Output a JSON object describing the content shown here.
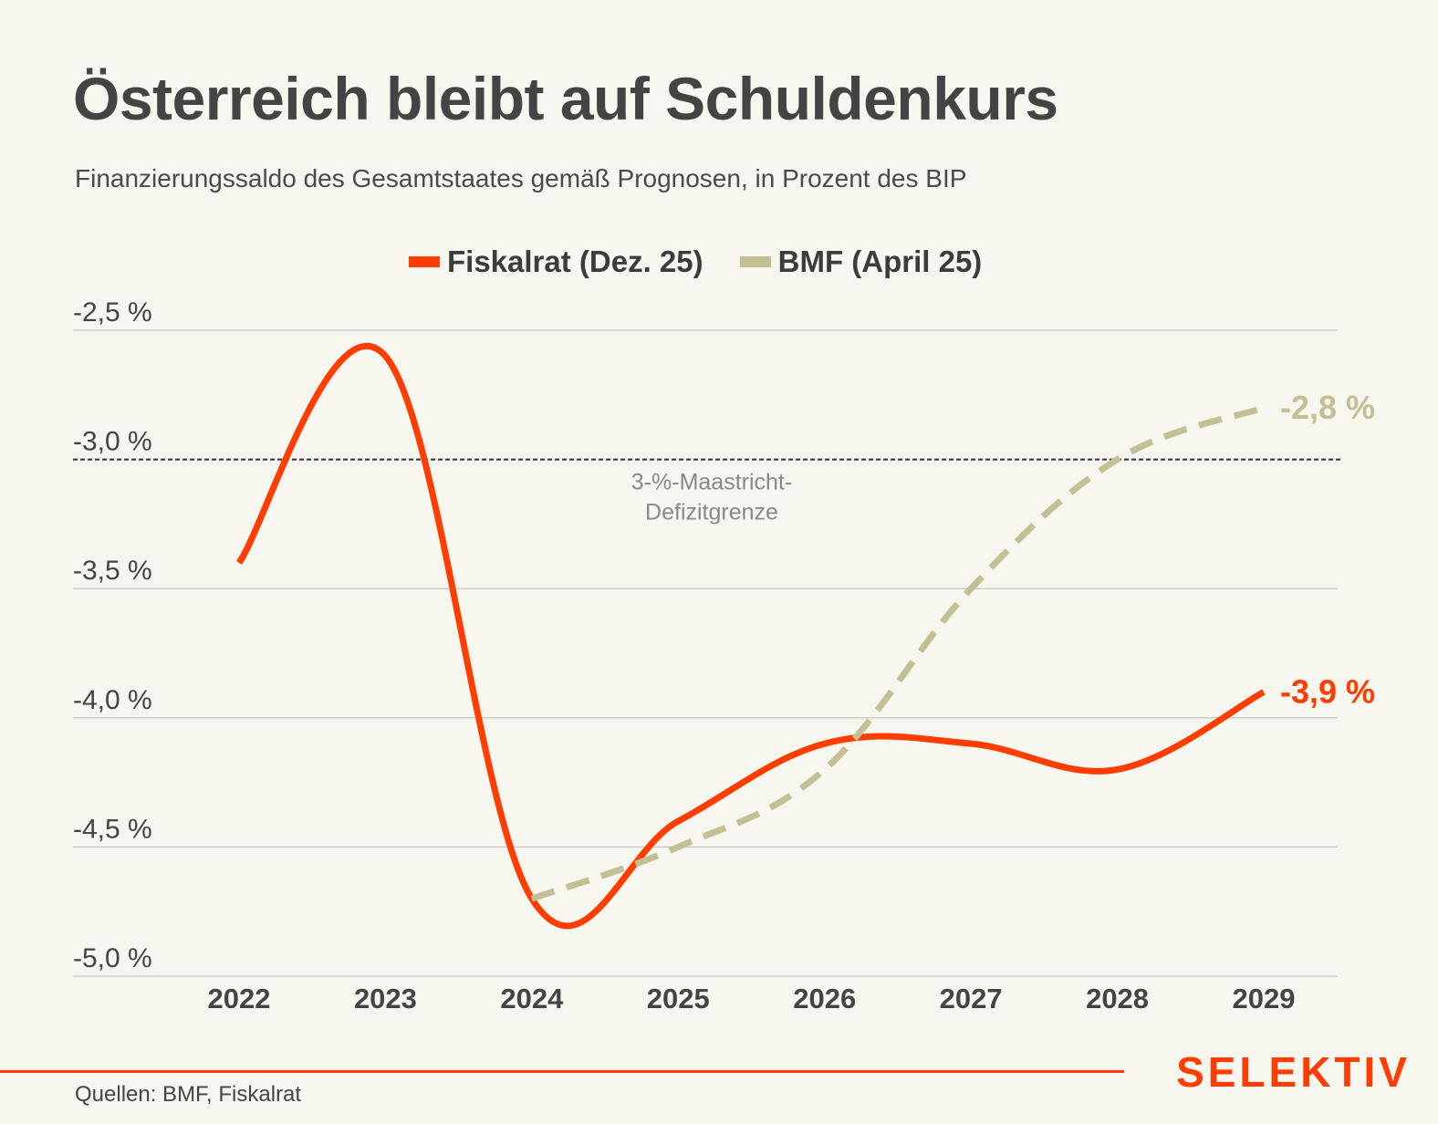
{
  "title": "Österreich bleibt auf Schuldenkurs",
  "subtitle": "Finanzierungssaldo des Gesamtstaates gemäß Prognosen, in Prozent des BIP",
  "colors": {
    "background": "#f8f7ef",
    "fiskalrat": "#ff3d00",
    "bmf": "#c4c095",
    "text": "#444444",
    "grid": "#cccccc",
    "annotation": "#888888",
    "brand": "#ff3d00"
  },
  "source": "Quellen: BMF, Fiskalrat",
  "brand": "SELEKTIV",
  "chart_data": {
    "type": "line",
    "title": "Österreich bleibt auf Schuldenkurs",
    "subtitle": "Finanzierungssaldo des Gesamtstaates gemäß Prognosen, in Prozent des BIP",
    "xlabel": "",
    "ylabel": "",
    "x": [
      "2022",
      "2023",
      "2024",
      "2025",
      "2026",
      "2027",
      "2028",
      "2029"
    ],
    "ylim": [
      -5.0,
      -2.5
    ],
    "yticks": [
      -2.5,
      -3.0,
      -3.5,
      -4.0,
      -4.5,
      -5.0
    ],
    "ytick_labels": [
      "-2,5 %",
      "-3,0 %",
      "-3,5 %",
      "-4,0 %",
      "-4,5 %",
      "-5,0 %"
    ],
    "grid": true,
    "legend_position": "top-center",
    "series": [
      {
        "name": "Fiskalrat (Dez. 25)",
        "style": "solid",
        "color": "#ff3d00",
        "values": [
          -3.4,
          -2.6,
          -4.7,
          -4.4,
          -4.1,
          -4.1,
          -4.2,
          -3.9
        ],
        "end_label": "-3,9 %"
      },
      {
        "name": "BMF (April 25)",
        "style": "dashed",
        "color": "#c4c095",
        "values": [
          null,
          null,
          -4.7,
          -4.5,
          -4.2,
          -3.5,
          -3.0,
          -2.8
        ],
        "end_label": "-2,8 %"
      }
    ],
    "reference_line": {
      "value": -3.0,
      "style": "dotted",
      "label_lines": [
        "3-%-Maastricht-",
        "Defizitgrenze"
      ]
    }
  }
}
